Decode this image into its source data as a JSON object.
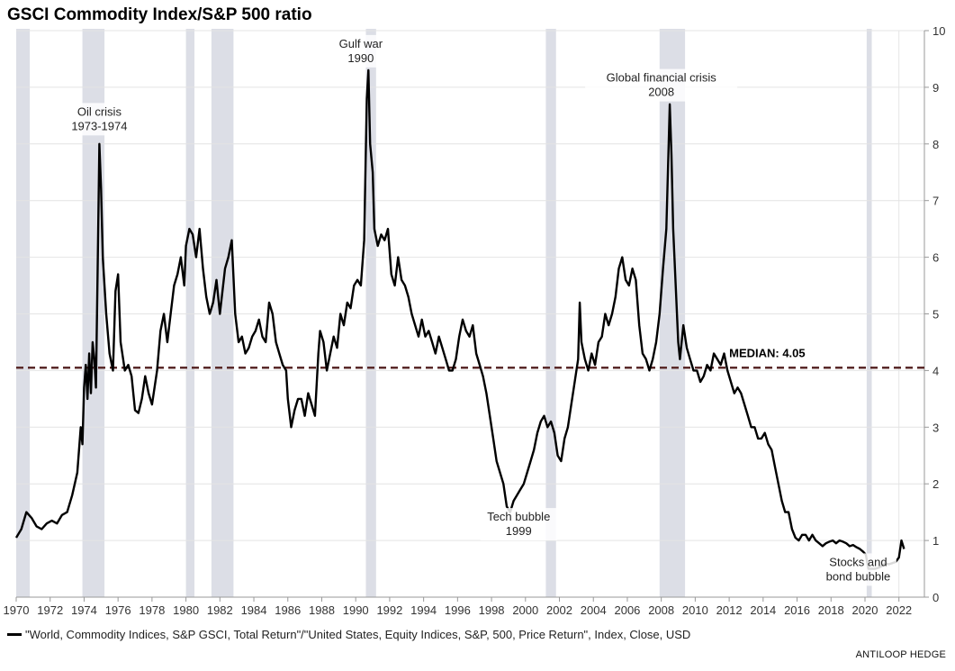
{
  "title": "GSCI Commodity Index/S&P 500 ratio",
  "source": "ANTILOOP HEDGE",
  "chart_data": {
    "type": "line",
    "title": "GSCI Commodity Index/S&P 500 ratio",
    "x_range": [
      1970,
      2023.5
    ],
    "ylim": [
      0,
      10
    ],
    "x_ticks": [
      "1970",
      "1972",
      "1974",
      "1976",
      "1978",
      "1980",
      "1982",
      "1984",
      "1986",
      "1988",
      "1990",
      "1992",
      "1994",
      "1996",
      "1998",
      "2000",
      "2002",
      "2004",
      "2006",
      "2008",
      "2010",
      "2012",
      "2014",
      "2016",
      "2018",
      "2020",
      "2022"
    ],
    "y_ticks": [
      "0",
      "1",
      "2",
      "3",
      "4",
      "5",
      "6",
      "7",
      "8",
      "9",
      "10"
    ],
    "grid": true,
    "median": {
      "value": 4.05,
      "label": "MEDIAN: 4.05",
      "color": "#5a2a2a"
    },
    "recessions": [
      [
        1970.0,
        1970.8
      ],
      [
        1973.9,
        1975.2
      ],
      [
        1980.0,
        1980.5
      ],
      [
        1981.5,
        1982.8
      ],
      [
        1990.6,
        1991.2
      ],
      [
        2001.2,
        2001.8
      ],
      [
        2007.9,
        2009.4
      ],
      [
        2020.1,
        2020.4
      ]
    ],
    "recession_color": "#dcdee6",
    "annotations": [
      {
        "lines": [
          "Oil crisis",
          "1973-1974"
        ],
        "x": 1974.9,
        "y": 8.5
      },
      {
        "lines": [
          "Gulf war",
          "1990"
        ],
        "x": 1990.3,
        "y": 9.7
      },
      {
        "lines": [
          "Global financial crisis",
          "2008"
        ],
        "x": 2008.0,
        "y": 9.1
      },
      {
        "lines": [
          "Tech bubble",
          "1999"
        ],
        "x": 1999.6,
        "y": 1.35
      },
      {
        "lines": [
          "Stocks and",
          "bond bubble"
        ],
        "x": 2019.6,
        "y": 0.55
      }
    ],
    "series": [
      {
        "name": "\"World, Commodity Indices, S&P GSCI, Total Return\"/\"United States, Equity Indices, S&P, 500, Price Return\", Index, Close, USD",
        "color": "#000000",
        "points": [
          [
            1970.0,
            1.05
          ],
          [
            1970.3,
            1.2
          ],
          [
            1970.6,
            1.5
          ],
          [
            1970.9,
            1.4
          ],
          [
            1971.2,
            1.25
          ],
          [
            1971.5,
            1.2
          ],
          [
            1971.8,
            1.3
          ],
          [
            1972.1,
            1.35
          ],
          [
            1972.4,
            1.3
          ],
          [
            1972.7,
            1.45
          ],
          [
            1973.0,
            1.5
          ],
          [
            1973.3,
            1.8
          ],
          [
            1973.6,
            2.2
          ],
          [
            1973.8,
            3.0
          ],
          [
            1973.9,
            2.7
          ],
          [
            1974.0,
            3.7
          ],
          [
            1974.1,
            4.1
          ],
          [
            1974.2,
            3.5
          ],
          [
            1974.3,
            4.3
          ],
          [
            1974.4,
            3.6
          ],
          [
            1974.5,
            4.5
          ],
          [
            1974.6,
            4.2
          ],
          [
            1974.7,
            3.7
          ],
          [
            1974.8,
            5.8
          ],
          [
            1974.9,
            8.0
          ],
          [
            1975.0,
            7.2
          ],
          [
            1975.1,
            6.0
          ],
          [
            1975.3,
            5.0
          ],
          [
            1975.5,
            4.3
          ],
          [
            1975.7,
            4.0
          ],
          [
            1975.85,
            5.4
          ],
          [
            1976.0,
            5.7
          ],
          [
            1976.15,
            4.5
          ],
          [
            1976.4,
            4.0
          ],
          [
            1976.6,
            4.1
          ],
          [
            1976.8,
            3.9
          ],
          [
            1977.0,
            3.3
          ],
          [
            1977.2,
            3.25
          ],
          [
            1977.4,
            3.5
          ],
          [
            1977.6,
            3.9
          ],
          [
            1977.8,
            3.6
          ],
          [
            1978.0,
            3.4
          ],
          [
            1978.3,
            4.0
          ],
          [
            1978.5,
            4.7
          ],
          [
            1978.7,
            5.0
          ],
          [
            1978.9,
            4.5
          ],
          [
            1979.1,
            5.0
          ],
          [
            1979.3,
            5.5
          ],
          [
            1979.5,
            5.7
          ],
          [
            1979.7,
            6.0
          ],
          [
            1979.9,
            5.5
          ],
          [
            1980.0,
            6.2
          ],
          [
            1980.2,
            6.5
          ],
          [
            1980.4,
            6.4
          ],
          [
            1980.6,
            6.0
          ],
          [
            1980.8,
            6.5
          ],
          [
            1981.0,
            5.8
          ],
          [
            1981.2,
            5.3
          ],
          [
            1981.4,
            5.0
          ],
          [
            1981.6,
            5.2
          ],
          [
            1981.8,
            5.6
          ],
          [
            1982.0,
            5.0
          ],
          [
            1982.3,
            5.8
          ],
          [
            1982.5,
            6.0
          ],
          [
            1982.7,
            6.3
          ],
          [
            1982.9,
            5.0
          ],
          [
            1983.1,
            4.5
          ],
          [
            1983.3,
            4.6
          ],
          [
            1983.5,
            4.3
          ],
          [
            1983.7,
            4.4
          ],
          [
            1983.9,
            4.6
          ],
          [
            1984.1,
            4.7
          ],
          [
            1984.3,
            4.9
          ],
          [
            1984.5,
            4.6
          ],
          [
            1984.7,
            4.5
          ],
          [
            1984.9,
            5.2
          ],
          [
            1985.1,
            5.0
          ],
          [
            1985.3,
            4.5
          ],
          [
            1985.5,
            4.3
          ],
          [
            1985.7,
            4.1
          ],
          [
            1985.9,
            4.0
          ],
          [
            1986.0,
            3.5
          ],
          [
            1986.2,
            3.0
          ],
          [
            1986.4,
            3.3
          ],
          [
            1986.6,
            3.5
          ],
          [
            1986.8,
            3.5
          ],
          [
            1987.0,
            3.2
          ],
          [
            1987.2,
            3.6
          ],
          [
            1987.4,
            3.4
          ],
          [
            1987.6,
            3.2
          ],
          [
            1987.8,
            4.3
          ],
          [
            1987.9,
            4.7
          ],
          [
            1988.1,
            4.5
          ],
          [
            1988.3,
            4.0
          ],
          [
            1988.5,
            4.3
          ],
          [
            1988.7,
            4.6
          ],
          [
            1988.9,
            4.4
          ],
          [
            1989.1,
            5.0
          ],
          [
            1989.3,
            4.8
          ],
          [
            1989.5,
            5.2
          ],
          [
            1989.7,
            5.1
          ],
          [
            1989.9,
            5.5
          ],
          [
            1990.1,
            5.6
          ],
          [
            1990.3,
            5.5
          ],
          [
            1990.5,
            6.3
          ],
          [
            1990.65,
            8.8
          ],
          [
            1990.75,
            9.3
          ],
          [
            1990.85,
            8.0
          ],
          [
            1991.0,
            7.5
          ],
          [
            1991.1,
            6.5
          ],
          [
            1991.3,
            6.2
          ],
          [
            1991.5,
            6.4
          ],
          [
            1991.7,
            6.3
          ],
          [
            1991.9,
            6.5
          ],
          [
            1992.1,
            5.7
          ],
          [
            1992.3,
            5.5
          ],
          [
            1992.5,
            6.0
          ],
          [
            1992.7,
            5.6
          ],
          [
            1992.9,
            5.5
          ],
          [
            1993.1,
            5.3
          ],
          [
            1993.3,
            5.0
          ],
          [
            1993.5,
            4.8
          ],
          [
            1993.7,
            4.6
          ],
          [
            1993.9,
            4.9
          ],
          [
            1994.1,
            4.6
          ],
          [
            1994.3,
            4.7
          ],
          [
            1994.5,
            4.5
          ],
          [
            1994.7,
            4.3
          ],
          [
            1994.9,
            4.6
          ],
          [
            1995.1,
            4.4
          ],
          [
            1995.3,
            4.2
          ],
          [
            1995.5,
            4.0
          ],
          [
            1995.7,
            4.0
          ],
          [
            1995.9,
            4.2
          ],
          [
            1996.1,
            4.6
          ],
          [
            1996.3,
            4.9
          ],
          [
            1996.5,
            4.7
          ],
          [
            1996.7,
            4.6
          ],
          [
            1996.9,
            4.8
          ],
          [
            1997.1,
            4.3
          ],
          [
            1997.3,
            4.1
          ],
          [
            1997.5,
            3.9
          ],
          [
            1997.7,
            3.6
          ],
          [
            1997.9,
            3.2
          ],
          [
            1998.1,
            2.8
          ],
          [
            1998.3,
            2.4
          ],
          [
            1998.5,
            2.2
          ],
          [
            1998.7,
            2.0
          ],
          [
            1998.9,
            1.6
          ],
          [
            1999.1,
            1.5
          ],
          [
            1999.3,
            1.7
          ],
          [
            1999.5,
            1.8
          ],
          [
            1999.7,
            1.9
          ],
          [
            1999.9,
            2.0
          ],
          [
            2000.1,
            2.2
          ],
          [
            2000.3,
            2.4
          ],
          [
            2000.5,
            2.6
          ],
          [
            2000.7,
            2.9
          ],
          [
            2000.9,
            3.1
          ],
          [
            2001.1,
            3.2
          ],
          [
            2001.3,
            3.0
          ],
          [
            2001.5,
            3.1
          ],
          [
            2001.7,
            2.9
          ],
          [
            2001.9,
            2.5
          ],
          [
            2002.1,
            2.4
          ],
          [
            2002.3,
            2.8
          ],
          [
            2002.5,
            3.0
          ],
          [
            2002.7,
            3.4
          ],
          [
            2002.9,
            3.8
          ],
          [
            2003.1,
            4.2
          ],
          [
            2003.2,
            5.2
          ],
          [
            2003.3,
            4.5
          ],
          [
            2003.5,
            4.2
          ],
          [
            2003.7,
            4.0
          ],
          [
            2003.9,
            4.3
          ],
          [
            2004.1,
            4.1
          ],
          [
            2004.3,
            4.5
          ],
          [
            2004.5,
            4.6
          ],
          [
            2004.7,
            5.0
          ],
          [
            2004.9,
            4.8
          ],
          [
            2005.1,
            5.0
          ],
          [
            2005.3,
            5.3
          ],
          [
            2005.5,
            5.8
          ],
          [
            2005.7,
            6.0
          ],
          [
            2005.9,
            5.6
          ],
          [
            2006.1,
            5.5
          ],
          [
            2006.3,
            5.8
          ],
          [
            2006.5,
            5.6
          ],
          [
            2006.7,
            4.8
          ],
          [
            2006.9,
            4.3
          ],
          [
            2007.1,
            4.2
          ],
          [
            2007.3,
            4.0
          ],
          [
            2007.5,
            4.2
          ],
          [
            2007.7,
            4.5
          ],
          [
            2007.9,
            5.0
          ],
          [
            2008.1,
            5.8
          ],
          [
            2008.3,
            6.5
          ],
          [
            2008.5,
            8.7
          ],
          [
            2008.6,
            7.8
          ],
          [
            2008.7,
            6.5
          ],
          [
            2008.85,
            5.5
          ],
          [
            2009.0,
            4.5
          ],
          [
            2009.1,
            4.2
          ],
          [
            2009.3,
            4.8
          ],
          [
            2009.5,
            4.4
          ],
          [
            2009.7,
            4.2
          ],
          [
            2009.9,
            4.0
          ],
          [
            2010.1,
            4.0
          ],
          [
            2010.3,
            3.8
          ],
          [
            2010.5,
            3.9
          ],
          [
            2010.7,
            4.1
          ],
          [
            2010.9,
            4.0
          ],
          [
            2011.1,
            4.3
          ],
          [
            2011.3,
            4.2
          ],
          [
            2011.5,
            4.1
          ],
          [
            2011.7,
            4.3
          ],
          [
            2011.9,
            4.0
          ],
          [
            2012.1,
            3.8
          ],
          [
            2012.3,
            3.6
          ],
          [
            2012.5,
            3.7
          ],
          [
            2012.7,
            3.6
          ],
          [
            2012.9,
            3.4
          ],
          [
            2013.1,
            3.2
          ],
          [
            2013.3,
            3.0
          ],
          [
            2013.5,
            3.0
          ],
          [
            2013.7,
            2.8
          ],
          [
            2013.9,
            2.8
          ],
          [
            2014.1,
            2.9
          ],
          [
            2014.3,
            2.7
          ],
          [
            2014.5,
            2.6
          ],
          [
            2014.7,
            2.3
          ],
          [
            2014.9,
            2.0
          ],
          [
            2015.1,
            1.7
          ],
          [
            2015.3,
            1.5
          ],
          [
            2015.5,
            1.5
          ],
          [
            2015.7,
            1.2
          ],
          [
            2015.9,
            1.05
          ],
          [
            2016.1,
            1.0
          ],
          [
            2016.3,
            1.1
          ],
          [
            2016.5,
            1.1
          ],
          [
            2016.7,
            1.0
          ],
          [
            2016.9,
            1.1
          ],
          [
            2017.1,
            1.0
          ],
          [
            2017.3,
            0.95
          ],
          [
            2017.5,
            0.9
          ],
          [
            2017.7,
            0.95
          ],
          [
            2017.9,
            0.98
          ],
          [
            2018.1,
            1.0
          ],
          [
            2018.3,
            0.95
          ],
          [
            2018.5,
            1.0
          ],
          [
            2018.7,
            0.98
          ],
          [
            2018.9,
            0.95
          ],
          [
            2019.1,
            0.9
          ],
          [
            2019.3,
            0.92
          ],
          [
            2019.5,
            0.88
          ],
          [
            2019.7,
            0.85
          ],
          [
            2019.9,
            0.8
          ],
          [
            2020.05,
            0.75
          ],
          [
            2020.2,
            0.5
          ],
          [
            2020.4,
            0.5
          ],
          [
            2020.6,
            0.5
          ],
          [
            2020.8,
            0.52
          ],
          [
            2021.0,
            0.55
          ],
          [
            2021.2,
            0.6
          ],
          [
            2021.4,
            0.58
          ],
          [
            2021.6,
            0.6
          ],
          [
            2021.8,
            0.62
          ],
          [
            2022.0,
            0.7
          ],
          [
            2022.15,
            1.0
          ],
          [
            2022.3,
            0.85
          ]
        ]
      }
    ]
  }
}
